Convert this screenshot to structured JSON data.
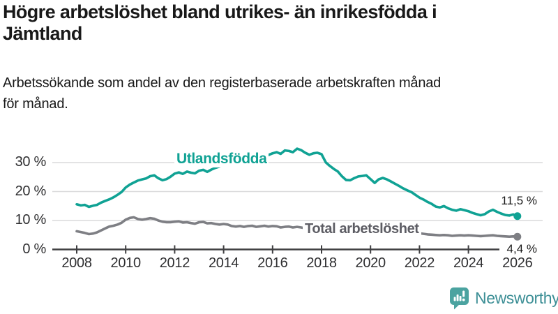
{
  "header": {
    "title_lines": [
      "Högre arbetslöshet bland utrikes- än inrikesfödda i",
      "Jämtland"
    ],
    "subtitle_lines": [
      "Arbetssökande som andel av den registerbaserade arbetskraften månad",
      "för månad."
    ]
  },
  "footer": {
    "brand_name": "Newsworthy"
  },
  "colors": {
    "accent_teal": "#10A294",
    "line_gray": "#7E7F84",
    "label_gray": "#5D5D64",
    "axis": "#3F3F41",
    "grid": "#DADADC",
    "logo_bubble": "#4BA3A0",
    "logo_text": "#3D8F96"
  },
  "chart_data": {
    "type": "line",
    "title": "Högre arbetslöshet bland utrikes- än inrikesfödda i Jämtland",
    "subtitle": "Arbetssökande som andel av den registerbaserade arbetskraften månad för månad.",
    "grid": true,
    "legend_position": "inline-labels-on-chart",
    "y_axis": {
      "tick_values": [
        0,
        10,
        20,
        30
      ],
      "tick_labels": [
        "0 %",
        "10 %",
        "20 %",
        "30 %"
      ],
      "range": [
        0,
        37
      ],
      "unit": "%"
    },
    "x_axis": {
      "tick_values": [
        2008,
        2010,
        2012,
        2014,
        2016,
        2018,
        2020,
        2022,
        2024,
        2026
      ],
      "tick_labels": [
        "2008",
        "2010",
        "2012",
        "2014",
        "2016",
        "2018",
        "2020",
        "2022",
        "2024",
        "2026"
      ],
      "range": [
        2007,
        2026.9
      ]
    },
    "x": [
      2008,
      2008.17,
      2008.33,
      2008.5,
      2008.67,
      2008.83,
      2009,
      2009.17,
      2009.33,
      2009.5,
      2009.67,
      2009.83,
      2010,
      2010.17,
      2010.33,
      2010.5,
      2010.67,
      2010.83,
      2011,
      2011.17,
      2011.33,
      2011.5,
      2011.67,
      2011.83,
      2012,
      2012.17,
      2012.33,
      2012.5,
      2012.67,
      2012.83,
      2013,
      2013.17,
      2013.33,
      2013.5,
      2013.67,
      2013.83,
      2014,
      2014.17,
      2014.33,
      2014.5,
      2014.67,
      2014.83,
      2015,
      2015.17,
      2015.33,
      2015.5,
      2015.67,
      2015.83,
      2016,
      2016.17,
      2016.33,
      2016.5,
      2016.67,
      2016.83,
      2017,
      2017.17,
      2017.33,
      2017.5,
      2017.67,
      2017.83,
      2018,
      2018.17,
      2018.33,
      2018.5,
      2018.67,
      2018.83,
      2019,
      2019.17,
      2019.33,
      2019.5,
      2019.67,
      2019.83,
      2020,
      2020.17,
      2020.33,
      2020.5,
      2020.67,
      2020.83,
      2021,
      2021.17,
      2021.33,
      2021.5,
      2021.67,
      2021.83,
      2022,
      2022.17,
      2022.33,
      2022.5,
      2022.67,
      2022.83,
      2023,
      2023.17,
      2023.33,
      2023.5,
      2023.67,
      2023.83,
      2024,
      2024.17,
      2024.33,
      2024.5,
      2024.67,
      2024.83,
      2025,
      2025.17,
      2025.33,
      2025.5,
      2025.67,
      2025.83,
      2026
    ],
    "series": [
      {
        "id": "utlandsfodda",
        "name": "Utlandsfödda",
        "color": "#10A294",
        "end_value": 11.5,
        "end_label": "11,5 %",
        "values": [
          15.6,
          15.2,
          15.4,
          14.7,
          15.1,
          15.4,
          16.2,
          16.8,
          17.3,
          18.0,
          18.9,
          19.8,
          21.4,
          22.4,
          23.1,
          23.8,
          24.2,
          24.5,
          25.3,
          25.6,
          24.6,
          23.9,
          24.3,
          25.1,
          26.2,
          26.6,
          26.1,
          26.9,
          26.5,
          26.3,
          27.2,
          27.5,
          26.8,
          27.6,
          28.2,
          28.6,
          29.3,
          29.8,
          29.4,
          30.1,
          30.6,
          30.9,
          31.4,
          31.8,
          31.3,
          31.9,
          32.3,
          32.6,
          33.2,
          33.6,
          33.0,
          34.2,
          34.0,
          33.6,
          34.8,
          34.3,
          33.4,
          32.7,
          33.2,
          33.4,
          32.9,
          30.1,
          28.9,
          27.8,
          26.9,
          25.3,
          24.0,
          23.9,
          24.6,
          25.2,
          25.4,
          25.6,
          24.3,
          23.0,
          24.2,
          24.7,
          24.2,
          23.5,
          22.7,
          21.9,
          21.1,
          20.4,
          19.8,
          18.9,
          17.9,
          17.2,
          16.4,
          15.7,
          14.8,
          14.5,
          15.0,
          14.2,
          13.7,
          13.4,
          13.9,
          13.6,
          13.2,
          12.6,
          12.2,
          11.8,
          12.2,
          13.1,
          13.7,
          13.0,
          12.4,
          11.9,
          11.7,
          12.1,
          11.5
        ]
      },
      {
        "id": "total",
        "name": "Total arbetslöshet",
        "color": "#7E7F84",
        "end_value": 4.4,
        "end_label": "4,4 %",
        "values": [
          6.3,
          6.0,
          5.7,
          5.3,
          5.5,
          5.9,
          6.6,
          7.3,
          7.9,
          8.2,
          8.6,
          9.2,
          10.3,
          10.9,
          11.1,
          10.5,
          10.3,
          10.5,
          10.8,
          10.6,
          10.0,
          9.6,
          9.4,
          9.4,
          9.6,
          9.7,
          9.3,
          9.4,
          9.1,
          8.9,
          9.4,
          9.5,
          9.0,
          9.1,
          8.8,
          8.6,
          8.8,
          8.6,
          8.1,
          7.9,
          8.1,
          7.8,
          8.1,
          8.2,
          7.8,
          8.0,
          8.2,
          7.9,
          8.1,
          8.0,
          7.6,
          7.8,
          7.9,
          7.6,
          7.8,
          7.6,
          7.3,
          7.2,
          7.1,
          6.9,
          7.0,
          6.8,
          6.5,
          6.4,
          6.3,
          6.2,
          6.4,
          6.3,
          6.2,
          6.3,
          6.4,
          6.5,
          6.6,
          6.9,
          7.4,
          7.5,
          7.3,
          7.0,
          6.9,
          6.6,
          6.3,
          6.1,
          5.9,
          5.7,
          5.6,
          5.4,
          5.2,
          5.1,
          5.0,
          4.9,
          5.0,
          4.9,
          4.7,
          4.8,
          4.9,
          4.8,
          4.9,
          4.8,
          4.7,
          4.6,
          4.7,
          4.8,
          4.9,
          4.7,
          4.6,
          4.5,
          4.4,
          4.5,
          4.4
        ]
      }
    ]
  }
}
